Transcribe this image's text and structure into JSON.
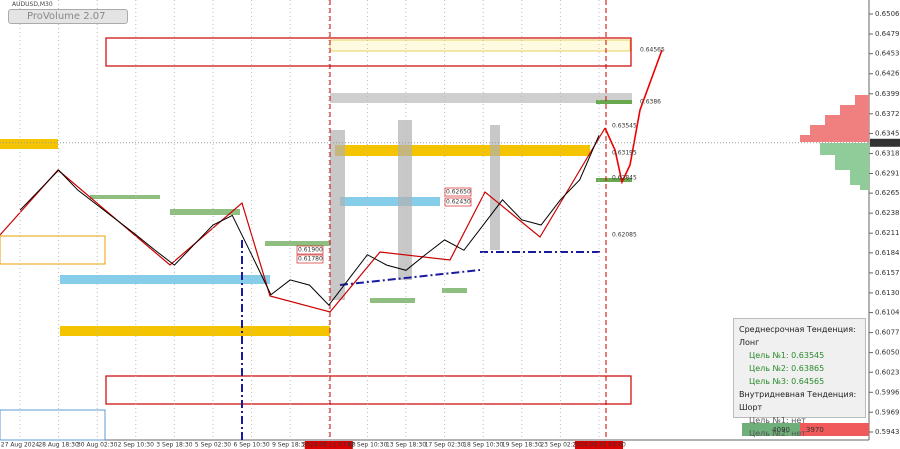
{
  "symbol": "AUDUSD,M30",
  "button": "ProVolume 2.07",
  "indicator_panel": {
    "medium_term": "Среднесрочная Тенденция: Лонг",
    "targets": [
      {
        "label": "Цель №1:",
        "value": "0.63545"
      },
      {
        "label": "Цель №2:",
        "value": "0.63865"
      },
      {
        "label": "Цель №3:",
        "value": "0.64565"
      }
    ],
    "intraday": "Внутридневная Тенденция: Шорт",
    "intraday_targets": [
      "Цель №1: нет",
      "Цель №2: нет"
    ]
  },
  "volume_bar": [
    "4090",
    "3970"
  ],
  "chart_data": {
    "type": "line",
    "color": "#000000",
    "categories": [
      "27 Aug 2024",
      null,
      "28 Aug 18:30",
      null,
      "30 Aug 02:30",
      null,
      "2 Sep 10:30",
      null,
      "3 Sep 18:30",
      null,
      "5 Sep 02:30",
      null,
      "6 Sep 10:30",
      null,
      "9 Sep 18:30",
      null,
      "2024.09.11 07:00",
      null,
      "12 Sep 10:30",
      null,
      "13 Sep 18:30",
      null,
      "17 Sep 02:30",
      null,
      "18 Sep 10:30",
      null,
      "19 Sep 18:30",
      null,
      "23 Sep 02:30",
      null,
      "2024.09.25 04:00"
    ],
    "values": [
      0.6242,
      0.6269,
      0.6296,
      0.6269,
      0.6249,
      0.6229,
      0.6209,
      0.6188,
      0.6168,
      0.6195,
      0.6222,
      0.6235,
      0.6182,
      0.6128,
      0.6148,
      0.6141,
      0.6114,
      0.6148,
      0.6182,
      0.6168,
      0.6161,
      0.6182,
      0.6202,
      0.6188,
      0.6222,
      0.6256,
      0.6229,
      0.6222,
      0.6256,
      0.6283,
      0.6343
    ],
    "ylim": [
      0.59322,
      0.65254
    ],
    "yticks": [
      0.65065,
      0.64795,
      {
        "value": 0.6453,
        "label": "0.64530"
      },
      {
        "value": 0.6426,
        "label": "0.64260"
      },
      {
        "value": 0.6399,
        "label": "0.63990"
      },
      {
        "value": 0.6372,
        "label": "0.63720"
      },
      0.63455,
      0.63185,
      0.62915,
      {
        "value": 0.6265,
        "label": "0.62650"
      },
      {
        "value": 0.6238,
        "label": "0.62380"
      },
      {
        "value": 0.6211,
        "label": "0.62110"
      },
      0.61845,
      0.61575,
      0.61305,
      {
        "value": 0.6104,
        "label": "0.61040"
      },
      {
        "value": 0.6077,
        "label": "0.60770"
      },
      {
        "value": 0.605,
        "label": "0.60500"
      },
      0.60235,
      0.59965,
      0.59696,
      {
        "value": 0.5943,
        "label": "0.59430"
      }
    ],
    "current_price": 0.63329,
    "level_labels": [
      "0.64565",
      "0.6386",
      "0.63545",
      "0.63195",
      "0.62845",
      "0.62085",
      "0.62650",
      "0.62430",
      "0.61900",
      "0.61780"
    ]
  }
}
